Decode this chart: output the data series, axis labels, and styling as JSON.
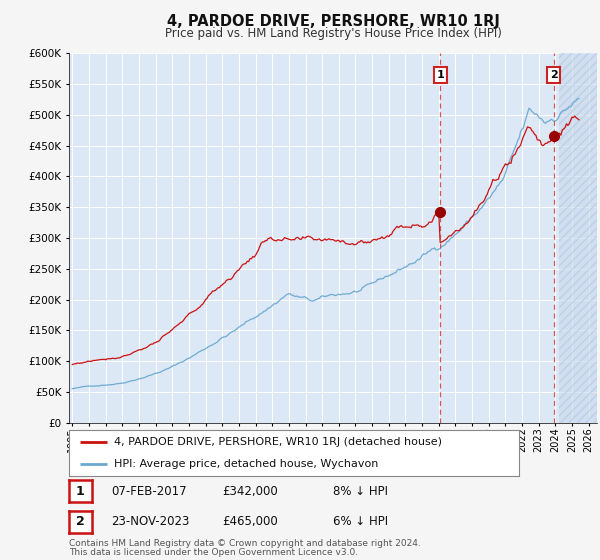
{
  "title": "4, PARDOE DRIVE, PERSHORE, WR10 1RJ",
  "subtitle": "Price paid vs. HM Land Registry's House Price Index (HPI)",
  "background_color": "#f5f5f5",
  "plot_bg_color": "#dce8f5",
  "plot_bg_hatch_color": "#c8d8ec",
  "grid_color": "#ffffff",
  "hpi_color": "#6aa8d0",
  "price_color": "#cc1111",
  "marker_color": "#990000",
  "ylim": [
    0,
    600000
  ],
  "yticks": [
    0,
    50000,
    100000,
    150000,
    200000,
    250000,
    300000,
    350000,
    400000,
    450000,
    500000,
    550000,
    600000
  ],
  "ytick_labels": [
    "£0",
    "£50K",
    "£100K",
    "£150K",
    "£200K",
    "£250K",
    "£300K",
    "£350K",
    "£400K",
    "£450K",
    "£500K",
    "£550K",
    "£600K"
  ],
  "xlim_start": 1994.8,
  "xlim_end": 2026.5,
  "xtick_years": [
    1995,
    1996,
    1997,
    1998,
    1999,
    2000,
    2001,
    2002,
    2003,
    2004,
    2005,
    2006,
    2007,
    2008,
    2009,
    2010,
    2011,
    2012,
    2013,
    2014,
    2015,
    2016,
    2017,
    2018,
    2019,
    2020,
    2021,
    2022,
    2023,
    2024,
    2025,
    2026
  ],
  "ann1_x": 2017.1,
  "ann1_y": 342000,
  "ann2_x": 2023.9,
  "ann2_y": 465000,
  "legend_line1": "4, PARDOE DRIVE, PERSHORE, WR10 1RJ (detached house)",
  "legend_line2": "HPI: Average price, detached house, Wychavon",
  "footer1": "Contains HM Land Registry data © Crown copyright and database right 2024.",
  "footer2": "This data is licensed under the Open Government Licence v3.0.",
  "table_rows": [
    {
      "num": "1",
      "date": "07-FEB-2017",
      "price": "£342,000",
      "pct": "8% ↓ HPI"
    },
    {
      "num": "2",
      "date": "23-NOV-2023",
      "price": "£465,000",
      "pct": "6% ↓ HPI"
    }
  ]
}
